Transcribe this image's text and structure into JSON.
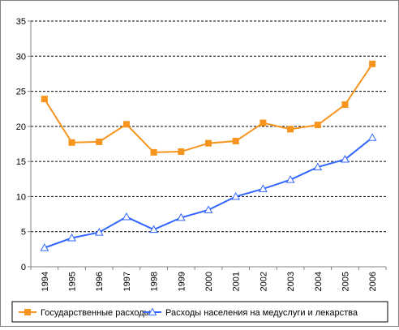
{
  "chart_data": {
    "type": "line",
    "title": "",
    "xlabel": "",
    "ylabel": "",
    "categories": [
      "1994",
      "1995",
      "1996",
      "1997",
      "1998",
      "1999",
      "2000",
      "2001",
      "2002",
      "2003",
      "2004",
      "2005",
      "2006"
    ],
    "ylim": [
      0,
      35
    ],
    "yticks": [
      0,
      5,
      10,
      15,
      20,
      25,
      30,
      35
    ],
    "grid": "horizontal dashed",
    "legend_position": "bottom",
    "series": [
      {
        "name": "Государственные расходы",
        "color": "#F7941D",
        "marker": "square",
        "values": [
          23.9,
          17.7,
          17.8,
          20.3,
          16.3,
          16.4,
          17.6,
          17.9,
          20.5,
          19.6,
          20.2,
          23.1,
          28.9
        ]
      },
      {
        "name": "Расходы населения на медуслуги и лекарства",
        "color": "#3366FF",
        "marker": "triangle",
        "values": [
          2.7,
          4.1,
          4.9,
          7.1,
          5.3,
          7.0,
          8.1,
          10.0,
          11.1,
          12.4,
          14.2,
          15.3,
          18.4
        ]
      }
    ]
  }
}
